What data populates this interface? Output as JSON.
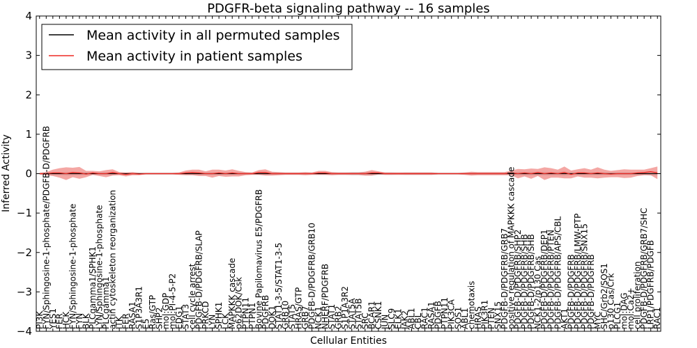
{
  "chart_data": {
    "type": "line",
    "title": "PDGFR-beta signaling pathway -- 16 samples",
    "xlabel": "Cellular Entities",
    "ylabel": "Inferred Activity",
    "ylim": [
      -4,
      4
    ],
    "yticks": [
      "4",
      "3",
      "2",
      "1",
      "0",
      "−1",
      "−2",
      "−3",
      "−4"
    ],
    "grid": false,
    "legend_position": "top-left",
    "colors": {
      "permuted_line": "#000000",
      "permuted_band": "#b9b9b9",
      "patient_line": "#ee2a24",
      "patient_band": "#f08a86"
    },
    "categories": [
      "PI3K",
      "FYN/Sphingosine-1-phosphate/PDGFB-D/PDGFRB",
      "YES1",
      "FER",
      "HCK",
      "FYN/Sphingosine-1-phosphate",
      "FYN",
      "BLK",
      "PLCgamma1/SPHK1",
      "LYN/Sphingosine-1-phosphate",
      "PLCgamma1",
      "actin cytoskeleton reorganization",
      "ITK",
      "FER",
      "RASA1",
      "S1P3A3R1",
      "E5",
      "Ras/GTP",
      "SHP2",
      "mol:GDP",
      "mol:PI-4-5-P2",
      "EDG1",
      "STAT3",
      "cell cycle arrest",
      "PDGFB-D/PDGFRB/SLAP",
      "PRKCD",
      "LYN",
      "SPHK1",
      "LCK",
      "MAPKKK cascade",
      "p62DOK/Csk",
      "PTPN11",
      "PTPN1",
      "Bovine Papilomavirus E5/PDGFRB",
      "PDGFRB",
      "DOK1",
      "STAT1-3-5/STAT1-3-5",
      "GRB10",
      "STAT5",
      "HRAS/GTP",
      "GRB7",
      "PDGFB-D/PDGFRB/GRB10",
      "NCK1",
      "NHERF/PDGFRB",
      "STAT1",
      "GRB2",
      "S1P1A3R2",
      "STAT5A",
      "STAT5B",
      "SRC",
      "BCAR1",
      "CSNK1",
      "JUN",
      "SLC9",
      "ELK1",
      "JAK2",
      "ABL1",
      "CBL",
      "RAC1",
      "RASA1",
      "PDGFB",
      "PTPN11",
      "PIK3CA",
      "SOS1",
      "ABL1",
      "chemotaxis",
      "HRAS",
      "PIK3R1",
      "PTEN",
      "SNX15",
      "PDGFB-D/PDGFRB/GRB7",
      "positive regulation of MAPKKK cascade",
      "PDGFB-D/PDGFRB/SHP2",
      "PDGFB-D/PDGFRB/SHB",
      "PDGFB-D/PDGFRB/SHB",
      "NCK1-2/p130 Cas",
      "PDGFB-D/PDGFRB/DEP1",
      "PDGFB-D/PDGFRB/PTEN",
      "PDGFB-D/PDGFRB/APS/CBL",
      "AKT1",
      "PDGFB-D/PDGFRB",
      "PDGFB-D/PDGFRB/LMW-PTP",
      "PDGFB-D/PDGFRB/SNX15",
      "PDGFB-D/PDGFRB",
      "MYC",
      "SHC/Grb2/SOS1",
      "p130 Cas/Crk",
      "PLCG1",
      "mol:DAG",
      "mol:Ca2+",
      "cell proliferation",
      "PDGFB-D/PDGFRB/GRB7/SHC",
      "LRP1/PDGFRB/PDGFB",
      "RAC1"
    ],
    "series": [
      {
        "name": "Mean activity in all permuted samples",
        "values": [
          0.0,
          0.0,
          0.0,
          0.0,
          0.0,
          0.0,
          0.0,
          0.0,
          0.0,
          0.0,
          0.0,
          0.0,
          0.0,
          0.0,
          0.0,
          0.0,
          0.0,
          0.0,
          0.0,
          0.0,
          0.0,
          0.0,
          0.0,
          0.0,
          0.0,
          0.0,
          0.0,
          0.0,
          0.0,
          0.0,
          0.0,
          0.0,
          0.0,
          0.0,
          0.0,
          0.0,
          0.0,
          0.0,
          0.0,
          0.0,
          0.0,
          0.0,
          0.0,
          0.0,
          0.0,
          0.0,
          0.0,
          0.0,
          0.0,
          0.0,
          0.0,
          0.0,
          0.0,
          0.0,
          0.0,
          0.0,
          0.0,
          0.0,
          0.0,
          0.0,
          0.0,
          0.0,
          0.0,
          0.0,
          0.0,
          0.0,
          0.0,
          0.0,
          0.0,
          0.0,
          0.0,
          0.0,
          0.0,
          0.0,
          0.0,
          0.0,
          0.0,
          0.0,
          0.0,
          0.0,
          0.0,
          0.0,
          0.0,
          0.0,
          0.0,
          0.0,
          0.0,
          0.0,
          0.0,
          0.0,
          0.0,
          0.0,
          0.0,
          0.0
        ],
        "band": [
          0.02,
          0.03,
          0.04,
          0.04,
          0.05,
          0.05,
          0.04,
          0.04,
          0.03,
          0.03,
          0.03,
          0.03,
          0.02,
          0.02,
          0.02,
          0.02,
          0.02,
          0.02,
          0.02,
          0.02,
          0.02,
          0.02,
          0.03,
          0.03,
          0.03,
          0.03,
          0.03,
          0.03,
          0.03,
          0.03,
          0.03,
          0.02,
          0.02,
          0.03,
          0.03,
          0.03,
          0.03,
          0.02,
          0.02,
          0.02,
          0.02,
          0.02,
          0.03,
          0.03,
          0.03,
          0.03,
          0.03,
          0.04,
          0.04,
          0.05,
          0.05,
          0.03,
          0.03,
          0.03,
          0.02,
          0.03,
          0.03,
          0.03,
          0.03,
          0.03,
          0.02,
          0.02,
          0.02,
          0.02,
          0.02,
          0.02,
          0.02,
          0.02,
          0.02,
          0.02,
          0.02,
          0.03,
          0.05,
          0.05,
          0.05,
          0.05,
          0.05,
          0.05,
          0.05,
          0.06,
          0.04,
          0.04,
          0.04,
          0.04,
          0.04,
          0.04,
          0.03,
          0.03,
          0.03,
          0.03,
          0.03,
          0.03,
          0.05,
          0.06
        ]
      },
      {
        "name": "Mean activity in patient samples",
        "values": [
          0.0,
          0.0,
          0.02,
          0.02,
          0.0,
          0.03,
          0.02,
          -0.01,
          0.02,
          0.0,
          0.0,
          0.03,
          0.0,
          -0.02,
          0.0,
          -0.01,
          0.0,
          0.0,
          0.0,
          0.0,
          0.0,
          0.0,
          0.02,
          0.03,
          0.02,
          0.0,
          0.0,
          0.02,
          0.0,
          0.02,
          0.0,
          0.0,
          0.0,
          0.03,
          0.03,
          0.0,
          0.0,
          0.0,
          0.0,
          0.0,
          0.0,
          0.0,
          0.02,
          0.02,
          0.0,
          0.0,
          0.0,
          0.0,
          0.0,
          0.0,
          0.02,
          0.02,
          0.0,
          0.0,
          0.0,
          0.0,
          0.0,
          0.0,
          0.0,
          0.0,
          0.0,
          0.0,
          0.0,
          0.0,
          0.0,
          0.0,
          0.0,
          0.0,
          0.0,
          0.0,
          0.0,
          0.02,
          0.0,
          0.02,
          0.0,
          0.03,
          0.0,
          0.02,
          0.0,
          0.03,
          -0.02,
          0.02,
          0.02,
          0.0,
          0.02,
          0.0,
          -0.01,
          0.0,
          0.0,
          0.0,
          0.02,
          0.03,
          0.05,
          0.02
        ],
        "band": [
          0.02,
          0.04,
          0.08,
          0.12,
          0.16,
          0.12,
          0.15,
          0.08,
          0.05,
          0.06,
          0.09,
          0.08,
          0.04,
          0.05,
          0.04,
          0.03,
          0.02,
          0.02,
          0.02,
          0.02,
          0.02,
          0.03,
          0.06,
          0.07,
          0.08,
          0.06,
          0.1,
          0.08,
          0.08,
          0.09,
          0.07,
          0.04,
          0.03,
          0.06,
          0.08,
          0.05,
          0.04,
          0.03,
          0.03,
          0.03,
          0.04,
          0.03,
          0.05,
          0.05,
          0.04,
          0.03,
          0.03,
          0.03,
          0.03,
          0.05,
          0.07,
          0.04,
          0.03,
          0.03,
          0.03,
          0.03,
          0.03,
          0.03,
          0.03,
          0.03,
          0.02,
          0.02,
          0.02,
          0.02,
          0.03,
          0.05,
          0.04,
          0.04,
          0.04,
          0.04,
          0.04,
          0.06,
          0.12,
          0.09,
          0.13,
          0.09,
          0.16,
          0.12,
          0.1,
          0.15,
          0.1,
          0.09,
          0.12,
          0.1,
          0.14,
          0.1,
          0.08,
          0.09,
          0.11,
          0.1,
          0.08,
          0.07,
          0.09,
          0.16
        ]
      }
    ]
  }
}
